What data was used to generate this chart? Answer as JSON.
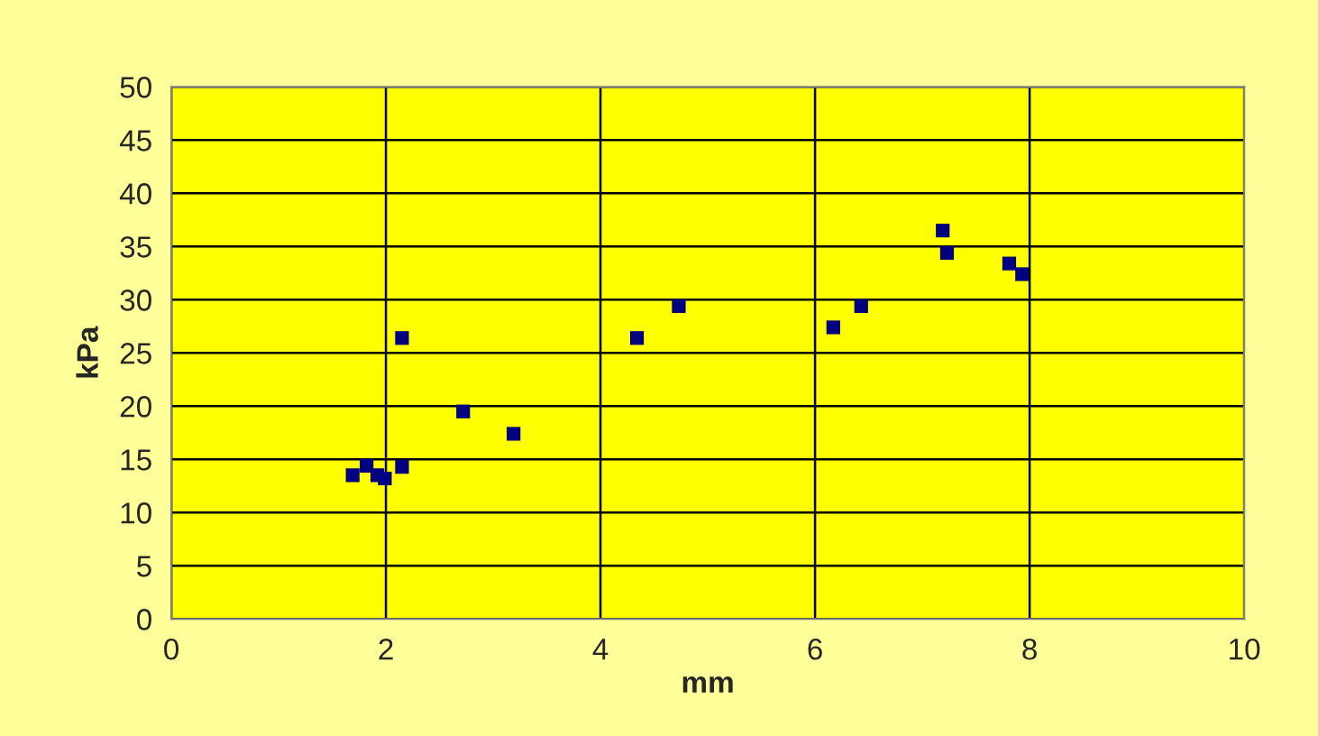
{
  "chart_data": {
    "type": "scatter",
    "xlabel": "mm",
    "ylabel": "kPa",
    "series": [
      {
        "color": "#000080",
        "x": [
          1.69,
          1.82,
          1.92,
          1.99,
          2.15,
          2.15,
          2.72,
          3.19,
          4.34,
          4.73,
          6.17,
          6.43,
          7.19,
          7.23,
          7.81,
          7.93
        ],
        "values": [
          13.5,
          14.4,
          13.5,
          13.2,
          14.3,
          26.4,
          19.5,
          17.4,
          26.4,
          29.4,
          27.4,
          29.4,
          36.5,
          34.4,
          33.4,
          32.4
        ]
      }
    ],
    "xlim": [
      0,
      10
    ],
    "xticks": [
      0,
      2,
      4,
      6,
      8,
      10
    ],
    "ylim": [
      0,
      50
    ],
    "yticks": [
      0,
      5,
      10,
      15,
      20,
      25,
      30,
      35,
      40,
      45,
      50
    ],
    "grid": true,
    "marker": "square"
  }
}
